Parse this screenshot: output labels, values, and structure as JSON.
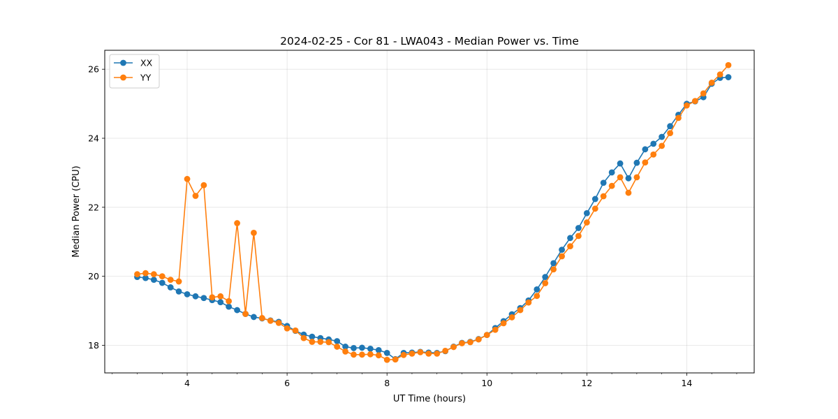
{
  "chart_data": {
    "type": "line",
    "title": "2024-02-25 - Cor 81 - LWA043 - Median Power vs. Time",
    "xlabel": "UT Time (hours)",
    "ylabel": "Median Power (CPU)",
    "xlim": [
      2.35,
      15.35
    ],
    "ylim": [
      17.2,
      26.55
    ],
    "xticks": [
      4,
      6,
      8,
      10,
      12,
      14
    ],
    "yticks": [
      18,
      20,
      22,
      24,
      26
    ],
    "xticks_minor_step": 0.5,
    "grid": true,
    "legend_position": "upper-left",
    "x": [
      3.0,
      3.167,
      3.333,
      3.5,
      3.667,
      3.833,
      4.0,
      4.167,
      4.333,
      4.5,
      4.667,
      4.833,
      5.0,
      5.167,
      5.333,
      5.5,
      5.667,
      5.833,
      6.0,
      6.167,
      6.333,
      6.5,
      6.667,
      6.833,
      7.0,
      7.167,
      7.333,
      7.5,
      7.667,
      7.833,
      8.0,
      8.167,
      8.333,
      8.5,
      8.667,
      8.833,
      9.0,
      9.167,
      9.333,
      9.5,
      9.667,
      9.833,
      10.0,
      10.167,
      10.333,
      10.5,
      10.667,
      10.833,
      11.0,
      11.167,
      11.333,
      11.5,
      11.667,
      11.833,
      12.0,
      12.167,
      12.333,
      12.5,
      12.667,
      12.833,
      13.0,
      13.167,
      13.333,
      13.5,
      13.667,
      13.833,
      14.0,
      14.167,
      14.333,
      14.5,
      14.667,
      14.833
    ],
    "series": [
      {
        "name": "XX",
        "color": "#1f77b4",
        "values": [
          19.98,
          19.95,
          19.9,
          19.81,
          19.68,
          19.56,
          19.48,
          19.42,
          19.37,
          19.31,
          19.25,
          19.12,
          19.02,
          18.91,
          18.82,
          18.78,
          18.72,
          18.68,
          18.56,
          18.42,
          18.31,
          18.25,
          18.21,
          18.17,
          18.12,
          17.96,
          17.92,
          17.93,
          17.9,
          17.86,
          17.78,
          17.6,
          17.78,
          17.79,
          17.81,
          17.79,
          17.78,
          17.83,
          17.96,
          18.07,
          18.1,
          18.18,
          18.3,
          18.5,
          18.7,
          18.9,
          19.08,
          19.3,
          19.62,
          19.98,
          20.38,
          20.77,
          21.11,
          21.4,
          21.83,
          22.24,
          22.71,
          23.01,
          23.27,
          22.84,
          23.29,
          23.68,
          23.84,
          24.04,
          24.35,
          24.68,
          25.0,
          25.07,
          25.19,
          25.58,
          25.75,
          25.77
        ]
      },
      {
        "name": "YY",
        "color": "#ff7f0e",
        "values": [
          20.06,
          20.09,
          20.06,
          20.0,
          19.9,
          19.85,
          22.82,
          22.33,
          22.64,
          19.39,
          19.42,
          19.28,
          21.54,
          18.91,
          21.26,
          18.79,
          18.71,
          18.65,
          18.49,
          18.43,
          18.21,
          18.1,
          18.1,
          18.09,
          17.96,
          17.82,
          17.73,
          17.73,
          17.74,
          17.71,
          17.58,
          17.59,
          17.72,
          17.76,
          17.8,
          17.76,
          17.76,
          17.84,
          17.95,
          18.06,
          18.09,
          18.17,
          18.3,
          18.45,
          18.64,
          18.81,
          19.02,
          19.24,
          19.43,
          19.8,
          20.2,
          20.58,
          20.87,
          21.17,
          21.56,
          21.96,
          22.32,
          22.62,
          22.87,
          22.42,
          22.87,
          23.3,
          23.53,
          23.78,
          24.15,
          24.59,
          24.95,
          25.08,
          25.3,
          25.61,
          25.85,
          26.12
        ]
      }
    ]
  }
}
